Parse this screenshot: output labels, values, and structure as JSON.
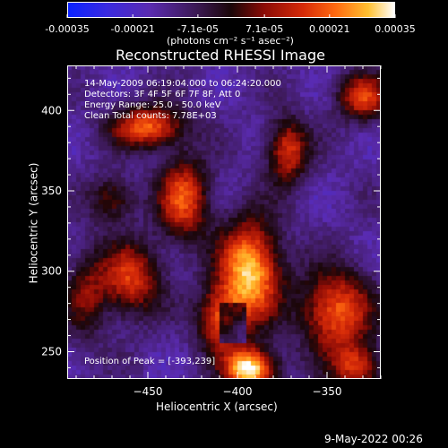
{
  "colorbar": {
    "tick_labels": [
      "-0.00035",
      "-0.00021",
      "-7.1e-05",
      "7.1e-05",
      "0.00021",
      "0.00035"
    ],
    "ticks": [
      -0.00035,
      -0.00021,
      -7.1e-05,
      7.1e-05,
      0.00021,
      0.00035
    ],
    "range": [
      -0.00035,
      0.00035
    ],
    "units": "(photons cm⁻² s⁻¹ asec⁻²)"
  },
  "chart_data": {
    "type": "heatmap",
    "title": "Reconstructed RHESSI Image",
    "xlabel": "Heliocentric X (arcsec)",
    "ylabel": "Heliocentric Y (arcsec)",
    "xlim": [
      -495,
      -320
    ],
    "ylim": [
      233,
      428
    ],
    "x_ticks": [
      -450,
      -400,
      -350
    ],
    "x_tick_labels": [
      "−450",
      "−400",
      "−350"
    ],
    "y_ticks": [
      250,
      300,
      350,
      400
    ],
    "y_tick_labels": [
      "250",
      "300",
      "350",
      "400"
    ],
    "annotations": [
      "14-May-2009 06:19:04.000 to 06:24:20.000",
      "Detectors: 3F 4F 5F 6F 7F 8F, Att 0",
      "Energy Range: 25.0 - 50.0 keV",
      "Clean     Total counts: 7.78E+03"
    ],
    "peak_label": "Position of Peak = [-393,239]",
    "peak": [
      -393,
      239
    ],
    "sources": [
      {
        "x": -393,
        "y": 239,
        "amp": 1.0,
        "sx": 10,
        "sy": 9
      },
      {
        "x": -393,
        "y": 300,
        "amp": 0.9,
        "sx": 12,
        "sy": 22
      },
      {
        "x": -410,
        "y": 270,
        "amp": 0.6,
        "sx": 9,
        "sy": 14
      },
      {
        "x": -450,
        "y": 390,
        "amp": 0.7,
        "sx": 14,
        "sy": 9
      },
      {
        "x": -430,
        "y": 345,
        "amp": 0.65,
        "sx": 10,
        "sy": 18
      },
      {
        "x": -460,
        "y": 295,
        "amp": 0.6,
        "sx": 12,
        "sy": 16
      },
      {
        "x": -470,
        "y": 345,
        "amp": 0.4,
        "sx": 9,
        "sy": 10
      },
      {
        "x": -345,
        "y": 275,
        "amp": 0.7,
        "sx": 14,
        "sy": 18
      },
      {
        "x": -372,
        "y": 375,
        "amp": 0.6,
        "sx": 8,
        "sy": 14
      },
      {
        "x": -330,
        "y": 408,
        "amp": 0.6,
        "sx": 10,
        "sy": 10
      },
      {
        "x": -333,
        "y": 240,
        "amp": 0.55,
        "sx": 10,
        "sy": 10
      },
      {
        "x": -485,
        "y": 285,
        "amp": 0.35,
        "sx": 8,
        "sy": 20
      }
    ]
  },
  "footer": {
    "date": "9-May-2022 00:26"
  }
}
